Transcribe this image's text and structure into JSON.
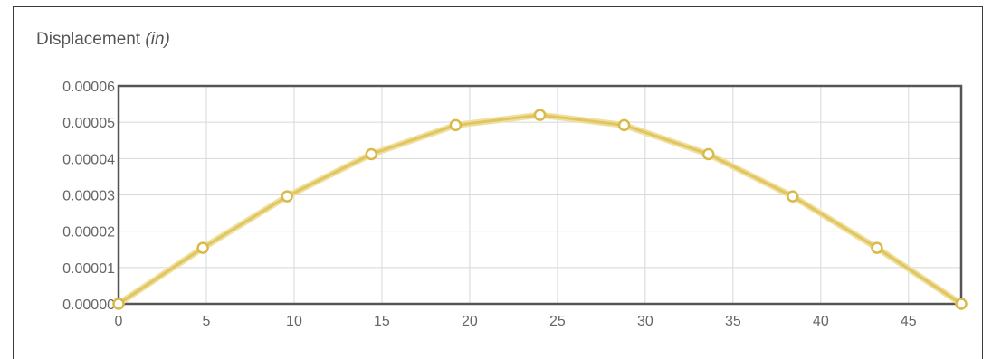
{
  "chart_data": {
    "type": "line",
    "title": "Displacement",
    "title_unit": "(in)",
    "xlabel": "",
    "ylabel": "",
    "x": [
      0,
      4.8,
      9.6,
      14.4,
      19.2,
      24,
      28.8,
      33.6,
      38.4,
      43.2,
      48
    ],
    "series": [
      {
        "values": [
          0,
          1.54e-05,
          2.96e-05,
          4.12e-05,
          4.92e-05,
          5.2e-05,
          4.92e-05,
          4.12e-05,
          2.96e-05,
          1.54e-05,
          0
        ]
      }
    ],
    "xlim": [
      0,
      48
    ],
    "ylim": [
      0,
      6e-05
    ],
    "x_ticks": [
      0,
      5,
      10,
      15,
      20,
      25,
      30,
      35,
      40,
      45
    ],
    "x_tick_labels": [
      "0",
      "5",
      "10",
      "15",
      "20",
      "25",
      "30",
      "35",
      "40",
      "45"
    ],
    "y_ticks": [
      0,
      1e-05,
      2e-05,
      3e-05,
      4e-05,
      5e-05,
      6e-05
    ],
    "y_tick_labels": [
      "0.00000",
      "0.00001",
      "0.00002",
      "0.00003",
      "0.00004",
      "0.00005",
      "0.00006"
    ],
    "grid": true,
    "colors": {
      "line": "#e0c560",
      "line_glow": "#efe0a0",
      "marker_fill": "#ffffff",
      "marker_stroke": "#d9b94a",
      "grid": "#d8d8d8",
      "axis": "#555555"
    }
  }
}
